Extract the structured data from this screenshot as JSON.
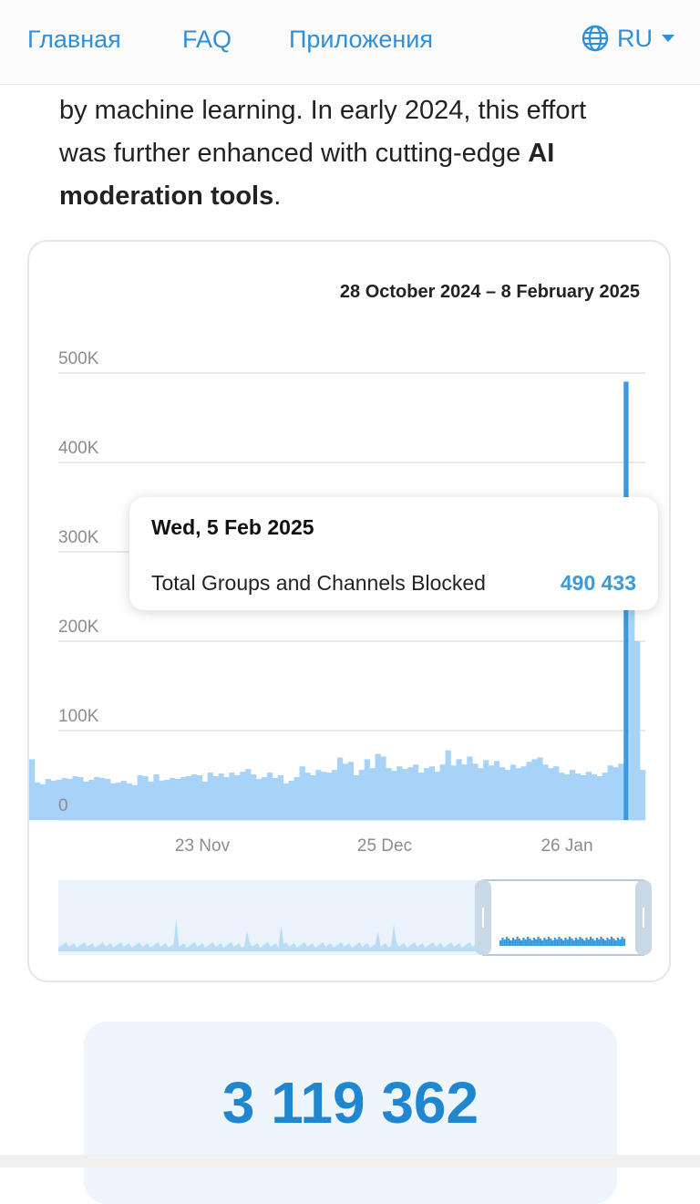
{
  "nav": {
    "home": "Главная",
    "faq": "FAQ",
    "apps": "Приложения",
    "lang": "RU"
  },
  "intro": {
    "line1": "by machine learning. In early 2024, this effort",
    "line2_plain": "was further enhanced with cutting-edge ",
    "line2_bold": "AI",
    "line3_bold": "moderation tools",
    "line3_tail": "."
  },
  "chart": {
    "range_label": "28 October 2024 – 8 February 2025",
    "tooltip": {
      "date": "Wed, 5 Feb 2025",
      "series_label": "Total Groups and Channels Blocked",
      "value_label": "490 433"
    }
  },
  "totals": {
    "value": "3 119 362"
  },
  "colors": {
    "accent": "#2f8fd8",
    "bar": "#a6d3f7",
    "bar_highlight": "#3a9ae0"
  },
  "chart_data": {
    "type": "bar",
    "ylim": [
      0,
      500000
    ],
    "yticks": [
      0,
      100000,
      200000,
      300000,
      400000,
      500000
    ],
    "ytick_labels": [
      "0",
      "100K",
      "200K",
      "300K",
      "400K",
      "500K"
    ],
    "xtick_labels": [
      "23 Nov",
      "25 Dec",
      "26 Jan"
    ],
    "series": [
      {
        "values": [
          68000,
          42000,
          40000,
          46000,
          44000,
          45000,
          47000,
          46000,
          49000,
          48000,
          43000,
          45000,
          48000,
          47000,
          46000,
          41000,
          42000,
          44000,
          41000,
          39000,
          50000,
          49000,
          43000,
          51000,
          44000,
          45000,
          47000,
          46000,
          48000,
          49000,
          51000,
          50000,
          43000,
          53000,
          49000,
          52000,
          48000,
          53000,
          50000,
          54000,
          57000,
          51000,
          46000,
          48000,
          53000,
          47000,
          50000,
          41000,
          44000,
          48000,
          60000,
          53000,
          50000,
          56000,
          54000,
          53000,
          56000,
          70000,
          63000,
          65000,
          50000,
          56000,
          68000,
          58000,
          74000,
          71000,
          58000,
          55000,
          60000,
          57000,
          59000,
          62000,
          53000,
          58000,
          60000,
          54000,
          62000,
          78000,
          61000,
          68000,
          62000,
          71000,
          63000,
          58000,
          67000,
          61000,
          66000,
          59000,
          56000,
          62000,
          58000,
          60000,
          65000,
          68000,
          70000,
          62000,
          58000,
          60000,
          53000,
          51000,
          56000,
          52000,
          50000,
          54000,
          51000,
          49000,
          53000,
          61000,
          59000,
          63000,
          490433,
          360000,
          200000,
          56000
        ]
      }
    ],
    "highlight_index": 110
  }
}
